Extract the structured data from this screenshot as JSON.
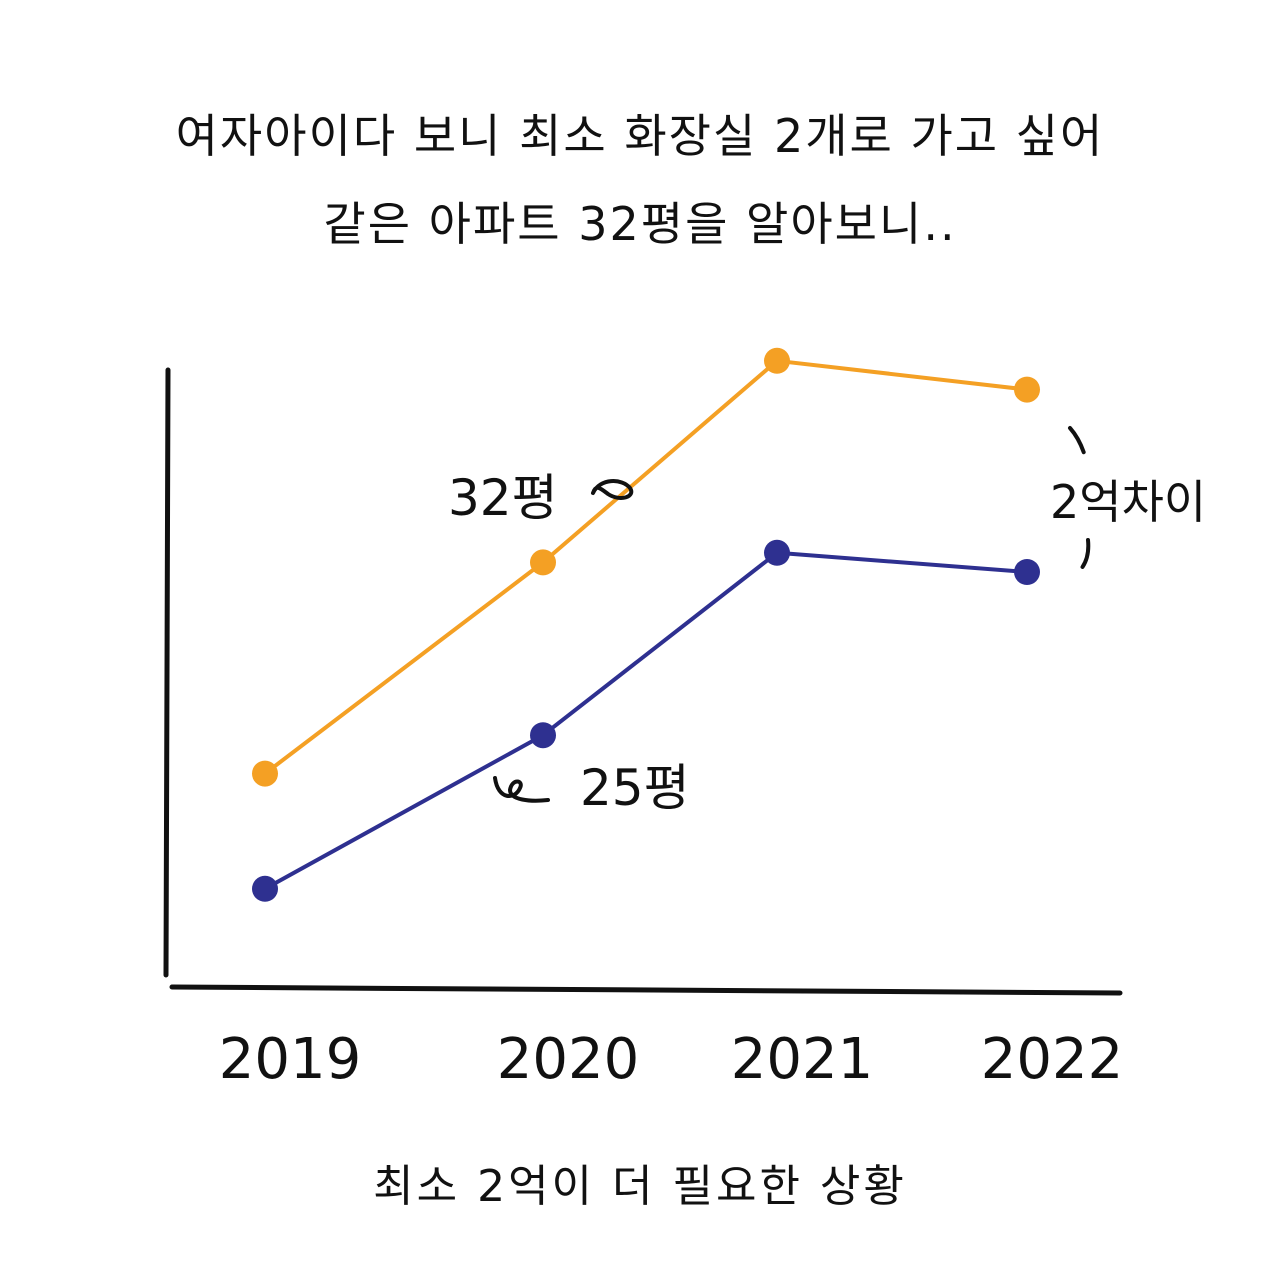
{
  "heading": {
    "line1": "여자아이다 보니 최소 화장실 2개로 가고 싶어",
    "line2": "같은 아파트 32평을 알아보니.."
  },
  "footer": "최소 2억이 더 필요한 상황",
  "chart_data": {
    "type": "line",
    "title": "",
    "xlabel": "",
    "ylabel": "",
    "categories": [
      "2019",
      "2020",
      "2021",
      "2022"
    ],
    "ylim": [
      0,
      100
    ],
    "grid": false,
    "series": [
      {
        "name": "32평",
        "color": "#f4a024",
        "values": [
          34,
          56,
          77,
          74
        ]
      },
      {
        "name": "25평",
        "color": "#2e3090",
        "values": [
          22,
          38,
          57,
          55
        ]
      }
    ],
    "annotations": [
      {
        "text": "2억차이",
        "between": [
          "32평",
          "25평"
        ],
        "at": "2022"
      }
    ]
  }
}
